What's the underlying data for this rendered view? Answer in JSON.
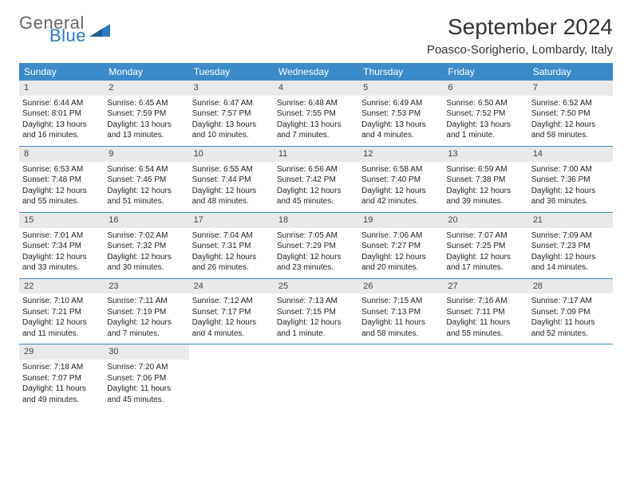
{
  "brand": {
    "word1": "General",
    "word2": "Blue",
    "color_general": "#666666",
    "color_blue": "#2b7bbf"
  },
  "title": "September 2024",
  "location": "Poasco-Sorigherio, Lombardy, Italy",
  "colors": {
    "header_bg": "#3b8bc9",
    "header_text": "#ffffff",
    "daynum_bg": "#e9e9e9",
    "week_border": "#3b8bc9",
    "body_text": "#222222"
  },
  "weekdays": [
    "Sunday",
    "Monday",
    "Tuesday",
    "Wednesday",
    "Thursday",
    "Friday",
    "Saturday"
  ],
  "weeks": [
    [
      {
        "n": "1",
        "sr": "Sunrise: 6:44 AM",
        "ss": "Sunset: 8:01 PM",
        "d1": "Daylight: 13 hours",
        "d2": "and 16 minutes."
      },
      {
        "n": "2",
        "sr": "Sunrise: 6:45 AM",
        "ss": "Sunset: 7:59 PM",
        "d1": "Daylight: 13 hours",
        "d2": "and 13 minutes."
      },
      {
        "n": "3",
        "sr": "Sunrise: 6:47 AM",
        "ss": "Sunset: 7:57 PM",
        "d1": "Daylight: 13 hours",
        "d2": "and 10 minutes."
      },
      {
        "n": "4",
        "sr": "Sunrise: 6:48 AM",
        "ss": "Sunset: 7:55 PM",
        "d1": "Daylight: 13 hours",
        "d2": "and 7 minutes."
      },
      {
        "n": "5",
        "sr": "Sunrise: 6:49 AM",
        "ss": "Sunset: 7:53 PM",
        "d1": "Daylight: 13 hours",
        "d2": "and 4 minutes."
      },
      {
        "n": "6",
        "sr": "Sunrise: 6:50 AM",
        "ss": "Sunset: 7:52 PM",
        "d1": "Daylight: 13 hours",
        "d2": "and 1 minute."
      },
      {
        "n": "7",
        "sr": "Sunrise: 6:52 AM",
        "ss": "Sunset: 7:50 PM",
        "d1": "Daylight: 12 hours",
        "d2": "and 58 minutes."
      }
    ],
    [
      {
        "n": "8",
        "sr": "Sunrise: 6:53 AM",
        "ss": "Sunset: 7:48 PM",
        "d1": "Daylight: 12 hours",
        "d2": "and 55 minutes."
      },
      {
        "n": "9",
        "sr": "Sunrise: 6:54 AM",
        "ss": "Sunset: 7:46 PM",
        "d1": "Daylight: 12 hours",
        "d2": "and 51 minutes."
      },
      {
        "n": "10",
        "sr": "Sunrise: 6:55 AM",
        "ss": "Sunset: 7:44 PM",
        "d1": "Daylight: 12 hours",
        "d2": "and 48 minutes."
      },
      {
        "n": "11",
        "sr": "Sunrise: 6:56 AM",
        "ss": "Sunset: 7:42 PM",
        "d1": "Daylight: 12 hours",
        "d2": "and 45 minutes."
      },
      {
        "n": "12",
        "sr": "Sunrise: 6:58 AM",
        "ss": "Sunset: 7:40 PM",
        "d1": "Daylight: 12 hours",
        "d2": "and 42 minutes."
      },
      {
        "n": "13",
        "sr": "Sunrise: 6:59 AM",
        "ss": "Sunset: 7:38 PM",
        "d1": "Daylight: 12 hours",
        "d2": "and 39 minutes."
      },
      {
        "n": "14",
        "sr": "Sunrise: 7:00 AM",
        "ss": "Sunset: 7:36 PM",
        "d1": "Daylight: 12 hours",
        "d2": "and 36 minutes."
      }
    ],
    [
      {
        "n": "15",
        "sr": "Sunrise: 7:01 AM",
        "ss": "Sunset: 7:34 PM",
        "d1": "Daylight: 12 hours",
        "d2": "and 33 minutes."
      },
      {
        "n": "16",
        "sr": "Sunrise: 7:02 AM",
        "ss": "Sunset: 7:32 PM",
        "d1": "Daylight: 12 hours",
        "d2": "and 30 minutes."
      },
      {
        "n": "17",
        "sr": "Sunrise: 7:04 AM",
        "ss": "Sunset: 7:31 PM",
        "d1": "Daylight: 12 hours",
        "d2": "and 26 minutes."
      },
      {
        "n": "18",
        "sr": "Sunrise: 7:05 AM",
        "ss": "Sunset: 7:29 PM",
        "d1": "Daylight: 12 hours",
        "d2": "and 23 minutes."
      },
      {
        "n": "19",
        "sr": "Sunrise: 7:06 AM",
        "ss": "Sunset: 7:27 PM",
        "d1": "Daylight: 12 hours",
        "d2": "and 20 minutes."
      },
      {
        "n": "20",
        "sr": "Sunrise: 7:07 AM",
        "ss": "Sunset: 7:25 PM",
        "d1": "Daylight: 12 hours",
        "d2": "and 17 minutes."
      },
      {
        "n": "21",
        "sr": "Sunrise: 7:09 AM",
        "ss": "Sunset: 7:23 PM",
        "d1": "Daylight: 12 hours",
        "d2": "and 14 minutes."
      }
    ],
    [
      {
        "n": "22",
        "sr": "Sunrise: 7:10 AM",
        "ss": "Sunset: 7:21 PM",
        "d1": "Daylight: 12 hours",
        "d2": "and 11 minutes."
      },
      {
        "n": "23",
        "sr": "Sunrise: 7:11 AM",
        "ss": "Sunset: 7:19 PM",
        "d1": "Daylight: 12 hours",
        "d2": "and 7 minutes."
      },
      {
        "n": "24",
        "sr": "Sunrise: 7:12 AM",
        "ss": "Sunset: 7:17 PM",
        "d1": "Daylight: 12 hours",
        "d2": "and 4 minutes."
      },
      {
        "n": "25",
        "sr": "Sunrise: 7:13 AM",
        "ss": "Sunset: 7:15 PM",
        "d1": "Daylight: 12 hours",
        "d2": "and 1 minute."
      },
      {
        "n": "26",
        "sr": "Sunrise: 7:15 AM",
        "ss": "Sunset: 7:13 PM",
        "d1": "Daylight: 11 hours",
        "d2": "and 58 minutes."
      },
      {
        "n": "27",
        "sr": "Sunrise: 7:16 AM",
        "ss": "Sunset: 7:11 PM",
        "d1": "Daylight: 11 hours",
        "d2": "and 55 minutes."
      },
      {
        "n": "28",
        "sr": "Sunrise: 7:17 AM",
        "ss": "Sunset: 7:09 PM",
        "d1": "Daylight: 11 hours",
        "d2": "and 52 minutes."
      }
    ],
    [
      {
        "n": "29",
        "sr": "Sunrise: 7:18 AM",
        "ss": "Sunset: 7:07 PM",
        "d1": "Daylight: 11 hours",
        "d2": "and 49 minutes."
      },
      {
        "n": "30",
        "sr": "Sunrise: 7:20 AM",
        "ss": "Sunset: 7:06 PM",
        "d1": "Daylight: 11 hours",
        "d2": "and 45 minutes."
      },
      {
        "empty": true
      },
      {
        "empty": true
      },
      {
        "empty": true
      },
      {
        "empty": true
      },
      {
        "empty": true
      }
    ]
  ]
}
